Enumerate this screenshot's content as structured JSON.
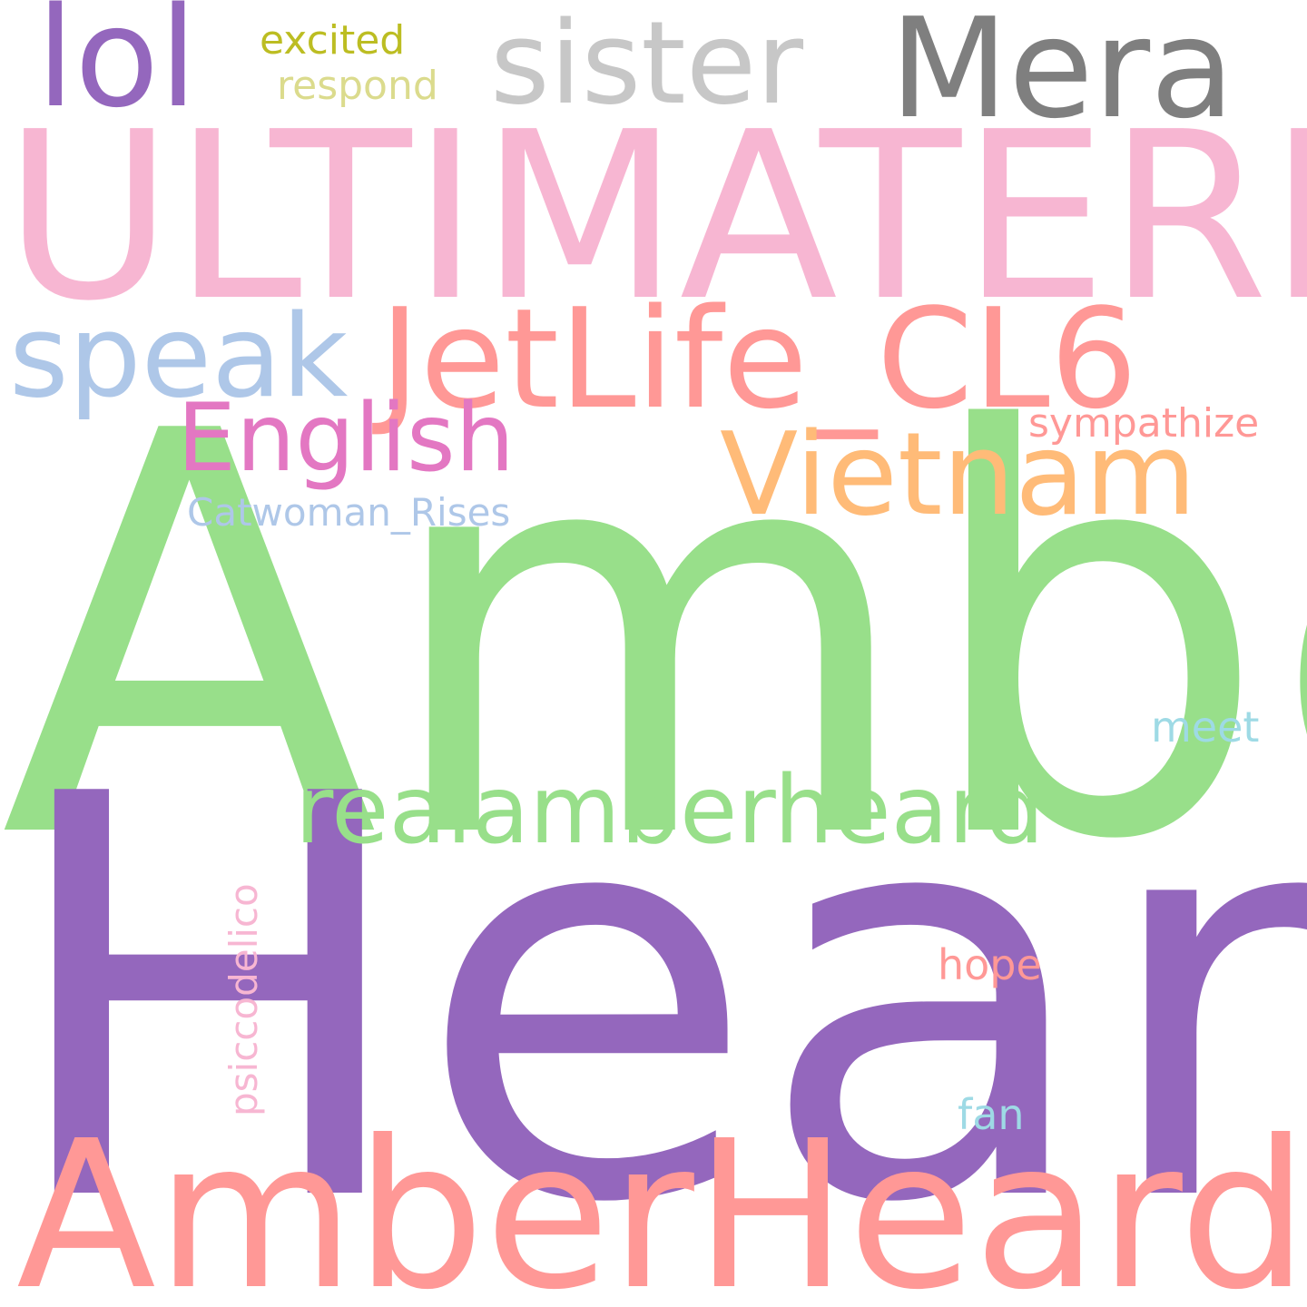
{
  "words": {
    "amber": {
      "text": "Amber",
      "color": "#98df8a"
    },
    "heard": {
      "text": "Heard",
      "color": "#9467bd"
    },
    "ultimaterpe": {
      "text": "ULTIMATERPE",
      "color": "#f7b6d2"
    },
    "amberheardit": {
      "text": "AmberHeardIT",
      "color": "#ff9896"
    },
    "jetlife": {
      "text": "JetLife_CL6",
      "color": "#ff9896"
    },
    "mera": {
      "text": "Mera",
      "color": "#7f7f7f"
    },
    "lol": {
      "text": "lol",
      "color": "#9467bd"
    },
    "sister": {
      "text": "sister",
      "color": "#c7c7c7"
    },
    "speak": {
      "text": "speak",
      "color": "#aec7e8"
    },
    "vietnam": {
      "text": "Vietnam",
      "color": "#ffbb78"
    },
    "english": {
      "text": "English",
      "color": "#e377c2"
    },
    "realamberheard": {
      "text": "realamberheard",
      "color": "#98df8a"
    },
    "excited": {
      "text": "excited",
      "color": "#bcbd22"
    },
    "respond": {
      "text": "respond",
      "color": "#dbdb8d"
    },
    "sympathize": {
      "text": "sympathize",
      "color": "#ff9896"
    },
    "catwoman": {
      "text": "Catwoman_Rises",
      "color": "#aec7e8"
    },
    "meet": {
      "text": "meet",
      "color": "#9edae5"
    },
    "hope": {
      "text": "hope",
      "color": "#ff9896"
    },
    "fan": {
      "text": "fan",
      "color": "#9edae5"
    },
    "psiccodelico": {
      "text": "psiccodelico",
      "color": "#f7b6d2"
    }
  }
}
